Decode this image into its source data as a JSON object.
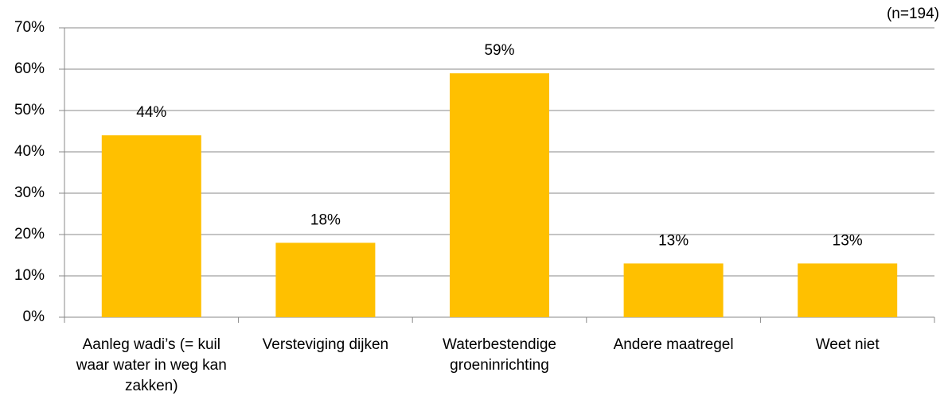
{
  "chart_data": {
    "type": "bar",
    "annotation": "(n=194)",
    "categories": [
      "Aanleg wadi’s (= kuil waar water in weg kan zakken)",
      "Versteviging dijken",
      "Waterbestendige groeninrichting",
      "Andere maatregel",
      "Weet niet"
    ],
    "values": [
      44,
      18,
      59,
      13,
      13
    ],
    "value_labels": [
      "44%",
      "18%",
      "59%",
      "13%",
      "13%"
    ],
    "color": "#ffc000",
    "ylim": [
      0,
      70
    ],
    "yticks": [
      {
        "value": 0,
        "label": "0%"
      },
      {
        "value": 10,
        "label": "10%"
      },
      {
        "value": 20,
        "label": "20%"
      },
      {
        "value": 30,
        "label": "30%"
      },
      {
        "value": 40,
        "label": "40%"
      },
      {
        "value": 50,
        "label": "50%"
      },
      {
        "value": 60,
        "label": "60%"
      },
      {
        "value": 70,
        "label": "70%"
      }
    ],
    "grid": true
  }
}
